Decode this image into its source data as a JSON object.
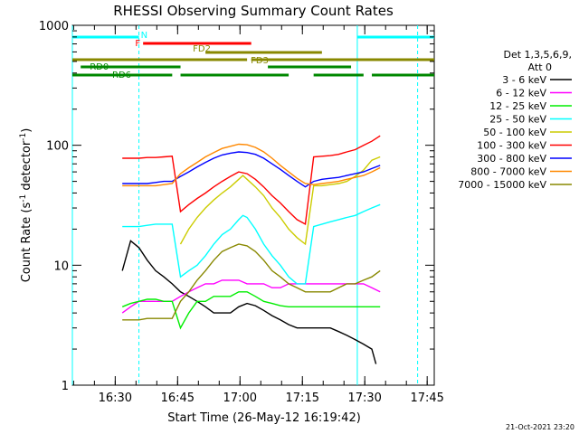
{
  "chart_data": {
    "type": "line",
    "title": "RHESSI Observing Summary Count Rates",
    "xlabel": "Start Time (26-May-12 16:19:42)",
    "ylabel_parts": [
      "Count Rate (s",
      "-1",
      " detector",
      "-1",
      ")"
    ],
    "yscale": "log",
    "ylim": [
      1,
      1000
    ],
    "xlim_minutes": [
      0,
      87
    ],
    "y_ticks": [
      {
        "value": 1,
        "label": "1"
      },
      {
        "value": 10,
        "label": "10"
      },
      {
        "value": 100,
        "label": "100"
      },
      {
        "value": 1000,
        "label": "1000"
      }
    ],
    "x_ticks": [
      {
        "value": 10.3,
        "label": "16:30"
      },
      {
        "value": 25.3,
        "label": "16:45"
      },
      {
        "value": 40.3,
        "label": "17:00"
      },
      {
        "value": 55.3,
        "label": "17:15"
      },
      {
        "value": 70.3,
        "label": "17:30"
      },
      {
        "value": 85.3,
        "label": "17:45"
      }
    ],
    "legend_header": [
      "Det 1,3,5,6,9,",
      "Att 0"
    ],
    "footer_date": "21-Oct-2021 23:20",
    "series": [
      {
        "name": "3 - 6 keV",
        "color": "#000000",
        "points": [
          [
            12,
            9
          ],
          [
            14,
            16
          ],
          [
            16,
            14
          ],
          [
            18,
            11
          ],
          [
            20,
            9
          ],
          [
            22,
            8
          ],
          [
            24,
            7
          ],
          [
            26,
            6
          ],
          [
            28,
            5.5
          ],
          [
            30,
            5
          ],
          [
            32,
            4.5
          ],
          [
            34,
            4
          ],
          [
            36,
            4
          ],
          [
            38,
            4
          ],
          [
            40,
            4.5
          ],
          [
            42,
            4.8
          ],
          [
            44,
            4.6
          ],
          [
            46,
            4.2
          ],
          [
            48,
            3.8
          ],
          [
            50,
            3.5
          ],
          [
            52,
            3.2
          ],
          [
            54,
            3
          ],
          [
            56,
            3
          ],
          [
            58,
            3
          ],
          [
            60,
            3
          ],
          [
            62,
            3
          ],
          [
            64,
            2.8
          ],
          [
            66,
            2.6
          ],
          [
            68,
            2.4
          ],
          [
            70,
            2.2
          ],
          [
            72,
            2
          ],
          [
            73,
            1.5
          ]
        ]
      },
      {
        "name": "6 - 12 keV",
        "color": "#ff00ff",
        "points": [
          [
            12,
            4
          ],
          [
            14,
            4.5
          ],
          [
            16,
            5
          ],
          [
            18,
            5
          ],
          [
            20,
            5
          ],
          [
            22,
            5
          ],
          [
            24,
            5
          ],
          [
            26,
            5.5
          ],
          [
            28,
            6
          ],
          [
            30,
            6.5
          ],
          [
            32,
            7
          ],
          [
            34,
            7
          ],
          [
            36,
            7.5
          ],
          [
            38,
            7.5
          ],
          [
            40,
            7.5
          ],
          [
            42,
            7
          ],
          [
            44,
            7
          ],
          [
            46,
            7
          ],
          [
            48,
            6.5
          ],
          [
            50,
            6.5
          ],
          [
            52,
            7
          ],
          [
            54,
            7
          ],
          [
            56,
            7
          ],
          [
            58,
            7
          ],
          [
            60,
            7
          ],
          [
            62,
            7
          ],
          [
            64,
            7
          ],
          [
            66,
            7
          ],
          [
            68,
            7
          ],
          [
            70,
            7
          ],
          [
            72,
            6.5
          ],
          [
            74,
            6
          ]
        ]
      },
      {
        "name": "12 - 25 keV",
        "color": "#00ee00",
        "points": [
          [
            12,
            4.5
          ],
          [
            14,
            4.8
          ],
          [
            16,
            5
          ],
          [
            18,
            5.2
          ],
          [
            20,
            5.2
          ],
          [
            22,
            5
          ],
          [
            24,
            5
          ],
          [
            26,
            3
          ],
          [
            28,
            4
          ],
          [
            30,
            5
          ],
          [
            32,
            5
          ],
          [
            34,
            5.5
          ],
          [
            36,
            5.5
          ],
          [
            38,
            5.5
          ],
          [
            40,
            6
          ],
          [
            42,
            6
          ],
          [
            44,
            5.5
          ],
          [
            46,
            5
          ],
          [
            48,
            4.8
          ],
          [
            50,
            4.6
          ],
          [
            52,
            4.5
          ],
          [
            54,
            4.5
          ],
          [
            56,
            4.5
          ],
          [
            58,
            4.5
          ],
          [
            60,
            4.5
          ],
          [
            62,
            4.5
          ],
          [
            64,
            4.5
          ],
          [
            66,
            4.5
          ],
          [
            68,
            4.5
          ],
          [
            70,
            4.5
          ],
          [
            72,
            4.5
          ],
          [
            74,
            4.5
          ]
        ]
      },
      {
        "name": "25 - 50 keV",
        "color": "#00ffff",
        "points": [
          [
            12,
            21
          ],
          [
            14,
            21
          ],
          [
            16,
            21
          ],
          [
            18,
            21.5
          ],
          [
            20,
            22
          ],
          [
            22,
            22
          ],
          [
            24,
            22
          ],
          [
            26,
            8
          ],
          [
            28,
            9
          ],
          [
            30,
            10
          ],
          [
            32,
            12
          ],
          [
            34,
            15
          ],
          [
            36,
            18
          ],
          [
            38,
            20
          ],
          [
            40,
            24
          ],
          [
            41,
            26
          ],
          [
            42,
            25
          ],
          [
            44,
            20
          ],
          [
            46,
            15
          ],
          [
            48,
            12
          ],
          [
            50,
            10
          ],
          [
            52,
            8
          ],
          [
            54,
            7
          ],
          [
            56,
            7
          ],
          [
            58,
            21
          ],
          [
            60,
            22
          ],
          [
            62,
            23
          ],
          [
            64,
            24
          ],
          [
            66,
            25
          ],
          [
            68,
            26
          ],
          [
            70,
            28
          ],
          [
            72,
            30
          ],
          [
            74,
            32
          ]
        ]
      },
      {
        "name": "50 - 100 keV",
        "color": "#cccc00",
        "points": [
          [
            26,
            15
          ],
          [
            28,
            20
          ],
          [
            30,
            25
          ],
          [
            32,
            30
          ],
          [
            34,
            35
          ],
          [
            36,
            40
          ],
          [
            38,
            45
          ],
          [
            40,
            52
          ],
          [
            41,
            56
          ],
          [
            42,
            52
          ],
          [
            44,
            45
          ],
          [
            46,
            38
          ],
          [
            48,
            30
          ],
          [
            50,
            25
          ],
          [
            52,
            20
          ],
          [
            54,
            17
          ],
          [
            56,
            15
          ],
          [
            58,
            46
          ],
          [
            60,
            46
          ],
          [
            62,
            47
          ],
          [
            64,
            48
          ],
          [
            66,
            50
          ],
          [
            68,
            55
          ],
          [
            70,
            62
          ],
          [
            72,
            75
          ],
          [
            74,
            80
          ]
        ]
      },
      {
        "name": "100 - 300 keV",
        "color": "#ff0000",
        "points": [
          [
            12,
            78
          ],
          [
            14,
            78
          ],
          [
            16,
            78
          ],
          [
            18,
            79
          ],
          [
            20,
            79
          ],
          [
            22,
            80
          ],
          [
            24,
            81
          ],
          [
            26,
            28
          ],
          [
            28,
            32
          ],
          [
            30,
            36
          ],
          [
            32,
            40
          ],
          [
            34,
            45
          ],
          [
            36,
            50
          ],
          [
            38,
            55
          ],
          [
            40,
            60
          ],
          [
            42,
            58
          ],
          [
            44,
            52
          ],
          [
            46,
            45
          ],
          [
            48,
            38
          ],
          [
            50,
            33
          ],
          [
            52,
            28
          ],
          [
            54,
            24
          ],
          [
            56,
            22
          ],
          [
            58,
            80
          ],
          [
            60,
            81
          ],
          [
            62,
            82
          ],
          [
            64,
            84
          ],
          [
            66,
            88
          ],
          [
            68,
            92
          ],
          [
            70,
            100
          ],
          [
            72,
            108
          ],
          [
            74,
            120
          ]
        ]
      },
      {
        "name": "300 - 800 keV",
        "color": "#0000ff",
        "points": [
          [
            12,
            48
          ],
          [
            14,
            48
          ],
          [
            16,
            48
          ],
          [
            18,
            48
          ],
          [
            20,
            49
          ],
          [
            22,
            50
          ],
          [
            24,
            50
          ],
          [
            26,
            55
          ],
          [
            28,
            60
          ],
          [
            30,
            66
          ],
          [
            32,
            72
          ],
          [
            34,
            78
          ],
          [
            36,
            83
          ],
          [
            38,
            86
          ],
          [
            40,
            88
          ],
          [
            42,
            87
          ],
          [
            44,
            84
          ],
          [
            46,
            78
          ],
          [
            48,
            70
          ],
          [
            50,
            63
          ],
          [
            52,
            56
          ],
          [
            54,
            50
          ],
          [
            56,
            45
          ],
          [
            58,
            50
          ],
          [
            60,
            52
          ],
          [
            62,
            53
          ],
          [
            64,
            54
          ],
          [
            66,
            56
          ],
          [
            68,
            58
          ],
          [
            70,
            60
          ],
          [
            72,
            64
          ],
          [
            74,
            68
          ]
        ]
      },
      {
        "name": "800 - 7000 keV",
        "color": "#ff8800",
        "points": [
          [
            12,
            46
          ],
          [
            14,
            46
          ],
          [
            16,
            46
          ],
          [
            18,
            46
          ],
          [
            20,
            46
          ],
          [
            22,
            47
          ],
          [
            24,
            48
          ],
          [
            26,
            58
          ],
          [
            28,
            65
          ],
          [
            30,
            72
          ],
          [
            32,
            80
          ],
          [
            34,
            87
          ],
          [
            36,
            94
          ],
          [
            38,
            98
          ],
          [
            40,
            102
          ],
          [
            42,
            101
          ],
          [
            44,
            96
          ],
          [
            46,
            88
          ],
          [
            48,
            78
          ],
          [
            50,
            68
          ],
          [
            52,
            60
          ],
          [
            54,
            53
          ],
          [
            56,
            48
          ],
          [
            58,
            47
          ],
          [
            60,
            48
          ],
          [
            62,
            49
          ],
          [
            64,
            50
          ],
          [
            66,
            52
          ],
          [
            68,
            54
          ],
          [
            70,
            56
          ],
          [
            72,
            60
          ],
          [
            74,
            65
          ]
        ]
      },
      {
        "name": "7000 - 15000 keV",
        "color": "#888800",
        "points": [
          [
            12,
            3.5
          ],
          [
            14,
            3.5
          ],
          [
            16,
            3.5
          ],
          [
            18,
            3.6
          ],
          [
            20,
            3.6
          ],
          [
            22,
            3.6
          ],
          [
            24,
            3.6
          ],
          [
            26,
            5
          ],
          [
            28,
            6
          ],
          [
            30,
            7.5
          ],
          [
            32,
            9
          ],
          [
            34,
            11
          ],
          [
            36,
            13
          ],
          [
            38,
            14
          ],
          [
            40,
            15
          ],
          [
            42,
            14.5
          ],
          [
            44,
            13
          ],
          [
            46,
            11
          ],
          [
            48,
            9
          ],
          [
            50,
            8
          ],
          [
            52,
            7
          ],
          [
            54,
            6.5
          ],
          [
            56,
            6
          ],
          [
            58,
            6
          ],
          [
            60,
            6
          ],
          [
            62,
            6
          ],
          [
            64,
            6.5
          ],
          [
            66,
            7
          ],
          [
            68,
            7
          ],
          [
            70,
            7.5
          ],
          [
            72,
            8
          ],
          [
            74,
            9
          ]
        ]
      }
    ],
    "state_bars": [
      {
        "label": "N",
        "color": "#00ffff",
        "row": 0,
        "segments": [
          [
            0,
            16
          ],
          [
            68.5,
            87
          ]
        ]
      },
      {
        "label": "F",
        "color": "#ff0000",
        "row": 1,
        "segments": [
          [
            17,
            43
          ]
        ]
      },
      {
        "label": "FD2",
        "color": "#888800",
        "row": 2,
        "segments": [
          [
            32,
            60
          ]
        ]
      },
      {
        "label": "FD3",
        "color": "#888800",
        "row": 3,
        "segments": [
          [
            0,
            42
          ],
          [
            43,
            87
          ]
        ]
      },
      {
        "label": "RD0",
        "color": "#008800",
        "row": 4,
        "segments": [
          [
            2,
            26
          ],
          [
            47,
            67
          ]
        ]
      },
      {
        "label": "RD6",
        "color": "#008800",
        "row": 5,
        "segments": [
          [
            0,
            24
          ],
          [
            26,
            52
          ],
          [
            58,
            70
          ],
          [
            72,
            87
          ]
        ]
      }
    ],
    "vertical_markers": [
      {
        "x": 0,
        "color": "#00ffff",
        "style": "solid"
      },
      {
        "x": 16,
        "color": "#00ffff",
        "style": "dashed"
      },
      {
        "x": 68.5,
        "color": "#00ffff",
        "style": "solid"
      },
      {
        "x": 83,
        "color": "#00ffff",
        "style": "dashed"
      }
    ],
    "grid": false,
    "legend_placement": "right"
  }
}
